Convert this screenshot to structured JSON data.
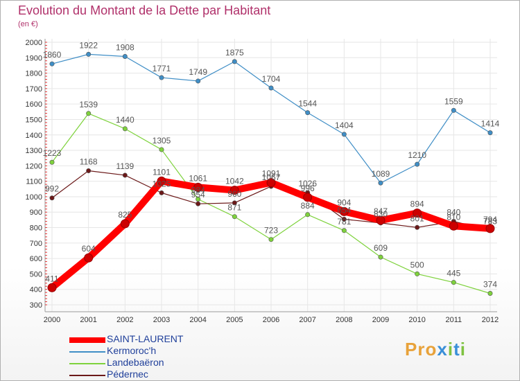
{
  "title": "Evolution du Montant de la Dette par Habitant",
  "subtitle": "(en €)",
  "logo": {
    "text": "Proxiti"
  },
  "chart_data": {
    "type": "line",
    "title": "Evolution du Montant de la Dette par Habitant",
    "ylabel": "(en €)",
    "xlabel": "",
    "x": [
      "2000",
      "2001",
      "2002",
      "2003",
      "2004",
      "2005",
      "2006",
      "2007",
      "2008",
      "2009",
      "2010",
      "2011",
      "2012"
    ],
    "ylim": [
      300,
      2000
    ],
    "yticks": [
      300,
      400,
      500,
      600,
      700,
      800,
      900,
      1000,
      1100,
      1200,
      1300,
      1400,
      1500,
      1600,
      1700,
      1800,
      1900,
      2000
    ],
    "grid": true,
    "legend_position": "bottom-left",
    "series": [
      {
        "name": "SAINT-LAURENT",
        "color": "#ff0000",
        "values": [
          411,
          604,
          825,
          1101,
          1061,
          1042,
          1091,
          996,
          904,
          847,
          894,
          810,
          794
        ],
        "labels": [
          "411",
          "604",
          "825",
          "1101",
          "1061",
          "1042",
          "1091",
          "996",
          "904",
          "847",
          "894",
          "810",
          "794"
        ]
      },
      {
        "name": "Kermoroc'h",
        "color": "#3f8ec6",
        "values": [
          1860,
          1922,
          1908,
          1771,
          1749,
          1875,
          1704,
          1544,
          1404,
          1089,
          1210,
          1559,
          1414
        ],
        "labels": [
          "1860",
          "1922",
          "1908",
          "1771",
          "1749",
          "1875",
          "1704",
          "1544",
          "1404",
          "1089",
          "1210",
          "1559",
          "1414"
        ]
      },
      {
        "name": "Landebaëron",
        "color": "#7ed23c",
        "values": [
          1223,
          1539,
          1440,
          1305,
          984,
          871,
          723,
          884,
          781,
          609,
          500,
          445,
          374
        ],
        "labels": [
          "1223",
          "1539",
          "1440",
          "1305",
          "984",
          "871",
          "723",
          "884",
          "781",
          "609",
          "500",
          "445",
          "374"
        ]
      },
      {
        "name": "Pédernec",
        "color": "#6b1818",
        "values": [
          992,
          1168,
          1139,
          1025,
          954,
          960,
          1067,
          1026,
          854,
          830,
          801,
          840,
          783
        ],
        "labels": [
          "992",
          "1168",
          "1139",
          "1025",
          "954",
          "960",
          "1067",
          "1026",
          "854",
          "830",
          "801",
          "840",
          "783"
        ]
      }
    ]
  }
}
